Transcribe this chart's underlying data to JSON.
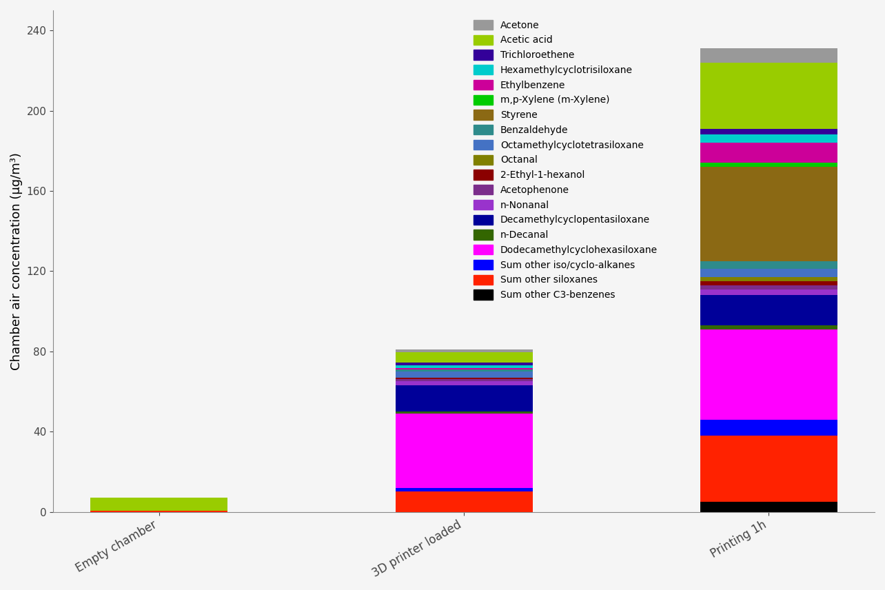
{
  "categories": [
    "Empty chamber",
    "3D printer loaded",
    "Printing 1h"
  ],
  "ylabel": "Chamber air concentration (μg/m³)",
  "ylim": [
    0,
    250
  ],
  "yticks": [
    0,
    40,
    80,
    120,
    160,
    200,
    240
  ],
  "background_color": "#f5f5f5",
  "bar_width": 0.45,
  "compounds": [
    "Sum other C3-benzenes",
    "Sum other siloxanes",
    "Sum other iso/cyclo-alkanes",
    "Dodecamethylcyclohexasiloxane",
    "n-Decanal",
    "Decamethylcyclopentasiloxane",
    "n-Nonanal",
    "Acetophenone",
    "2-Ethyl-1-hexanol",
    "Octanal",
    "Octamethylcyclotetrasiloxane",
    "Benzaldehyde",
    "Styrene",
    "m,p-Xylene (m-Xylene)",
    "Ethylbenzene",
    "Hexamethylcyclotrisiloxane",
    "Trichloroethene",
    "Acetic acid",
    "Acetone"
  ],
  "colors": [
    "#000000",
    "#ff2200",
    "#0000ff",
    "#ff00ff",
    "#336600",
    "#000099",
    "#9933cc",
    "#7b2d8b",
    "#8b0000",
    "#808000",
    "#4472c4",
    "#2e8b8b",
    "#8B6914",
    "#00cc00",
    "#cc0099",
    "#00cccc",
    "#330099",
    "#99cc00",
    "#999999"
  ],
  "values": {
    "Empty chamber": [
      0.0,
      0.5,
      0.0,
      0.0,
      0.0,
      0.0,
      0.0,
      0.0,
      0.0,
      0.0,
      0.0,
      0.0,
      0.0,
      0.0,
      0.2,
      0.0,
      0.0,
      6.5,
      0.0
    ],
    "3D printer loaded": [
      0.0,
      10.0,
      2.0,
      37.0,
      1.0,
      13.0,
      2.0,
      1.0,
      1.0,
      0.0,
      3.0,
      1.0,
      0.0,
      0.0,
      0.5,
      1.5,
      1.5,
      5.0,
      1.5
    ],
    "Printing 1h": [
      5.0,
      33.0,
      8.0,
      45.0,
      2.0,
      15.0,
      3.0,
      2.0,
      2.0,
      2.0,
      4.0,
      4.0,
      47.0,
      2.0,
      10.0,
      4.0,
      3.0,
      33.0,
      7.0
    ]
  }
}
